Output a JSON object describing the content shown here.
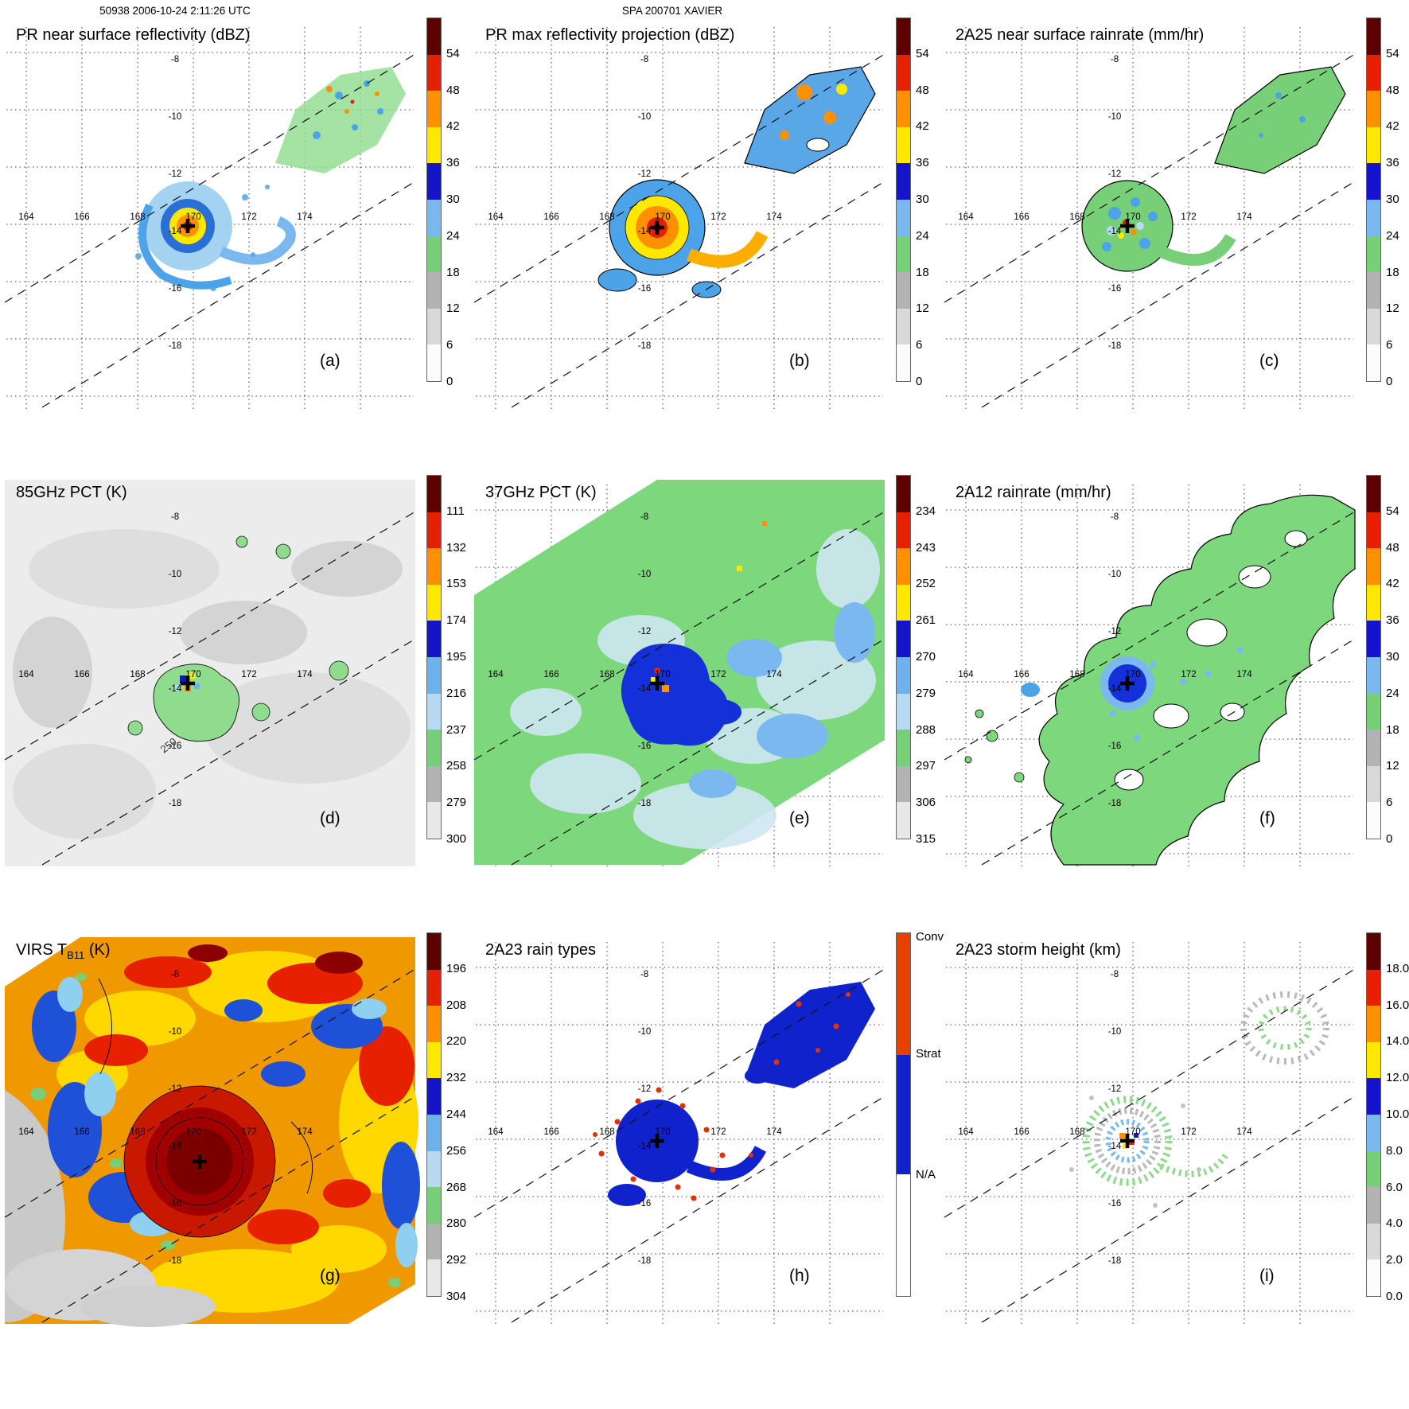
{
  "header": {
    "scan_id_time": "50938 2006-10-24 2:11:26 UTC",
    "storm_name": "SPA 200701 XAVIER"
  },
  "axes": {
    "lon": [
      "164",
      "166",
      "168",
      "170",
      "172",
      "174"
    ],
    "lat": [
      "-8",
      "-10",
      "-12",
      "-14",
      "-16",
      "-18"
    ]
  },
  "palettes": {
    "rain": [
      "#5c0000",
      "#e62000",
      "#ff9000",
      "#ffe800",
      "#1414cc",
      "#7ab8ef",
      "#77d077",
      "#b3b3b3",
      "#d9d9d9",
      "#fbfbfb"
    ],
    "temp": [
      "#5c0000",
      "#e62000",
      "#ff9000",
      "#ffe800",
      "#1414cc",
      "#6db1ed",
      "#b8d9f2",
      "#77d077",
      "#b3b3b3",
      "#e8e8e8"
    ],
    "raintype": [
      "#e84000",
      "#1022cc",
      "#ffffff"
    ]
  },
  "panels": [
    {
      "id": "a",
      "letter": "(a)",
      "title": "PR near surface reflectivity (dBZ)",
      "palette": "rain",
      "ticks": [
        "54",
        "48",
        "42",
        "36",
        "30",
        "24",
        "18",
        "12",
        "6",
        "0"
      ]
    },
    {
      "id": "b",
      "letter": "(b)",
      "title": "PR max reflectivity projection (dBZ)",
      "palette": "rain",
      "ticks": [
        "54",
        "48",
        "42",
        "36",
        "30",
        "24",
        "18",
        "12",
        "6",
        "0"
      ]
    },
    {
      "id": "c",
      "letter": "(c)",
      "title": "2A25 near surface rainrate (mm/hr)",
      "palette": "rain",
      "ticks": [
        "54",
        "48",
        "42",
        "36",
        "30",
        "24",
        "18",
        "12",
        "6",
        "0"
      ]
    },
    {
      "id": "d",
      "letter": "(d)",
      "title": "85GHz PCT (K)",
      "palette": "temp",
      "ticks": [
        "111",
        "132",
        "153",
        "174",
        "195",
        "216",
        "237",
        "258",
        "279",
        "300"
      ],
      "contour_label": "250"
    },
    {
      "id": "e",
      "letter": "(e)",
      "title": "37GHz PCT (K)",
      "palette": "temp",
      "ticks": [
        "234",
        "243",
        "252",
        "261",
        "270",
        "279",
        "288",
        "297",
        "306",
        "315"
      ]
    },
    {
      "id": "f",
      "letter": "(f)",
      "title": "2A12 rainrate (mm/hr)",
      "palette": "rain",
      "ticks": [
        "54",
        "48",
        "42",
        "36",
        "30",
        "24",
        "18",
        "12",
        "6",
        "0"
      ]
    },
    {
      "id": "g",
      "letter": "(g)",
      "title_prefix": "VIRS T",
      "title_sub": "B11",
      "title_suffix": " (K)",
      "palette": "temp",
      "ticks": [
        "196",
        "208",
        "220",
        "232",
        "244",
        "256",
        "268",
        "280",
        "292",
        "304"
      ]
    },
    {
      "id": "h",
      "letter": "(h)",
      "title": "2A23 rain types",
      "palette": "raintype",
      "type_labels": [
        "Conv",
        "Strat",
        "N/A"
      ]
    },
    {
      "id": "i",
      "letter": "(i)",
      "title": "2A23 storm height (km)",
      "palette": "rain",
      "ticks": [
        "18.0",
        "16.0",
        "14.0",
        "12.0",
        "10.0",
        "8.0",
        "6.0",
        "4.0",
        "2.0",
        "0.0"
      ]
    }
  ],
  "chart_data": [
    {
      "type": "heatmap",
      "panel": "a",
      "title": "PR near surface reflectivity (dBZ)",
      "units": "dBZ",
      "colorbar_ticks": [
        54,
        48,
        42,
        36,
        30,
        24,
        18,
        12,
        6,
        0
      ],
      "lon_ticks": [
        164,
        166,
        168,
        170,
        172,
        174
      ],
      "lat_ticks": [
        -8,
        -10,
        -12,
        -14,
        -16,
        -18
      ],
      "storm_center": {
        "lon": 169.6,
        "lat": -14.1
      },
      "features": "Narrow PR swath oriented SW-NE between dashed boundaries; eyewall ring 30-50 dBZ around center with spiral band 20-35 dBZ to the ESE; stratiform area near 173-175E 10-12S mostly 18-30 dBZ"
    },
    {
      "type": "heatmap",
      "panel": "b",
      "title": "PR max reflectivity projection (dBZ)",
      "units": "dBZ",
      "colorbar_ticks": [
        54,
        48,
        42,
        36,
        30,
        24,
        18,
        12,
        6,
        0
      ],
      "storm_center": {
        "lon": 169.6,
        "lat": -14.1
      },
      "features": "Column-maximum reflectivity in same swath; eyewall 36-54 dBZ (yellow-orange-red core), outer bands 24-36 dBZ, black outlines around echo regions"
    },
    {
      "type": "heatmap",
      "panel": "c",
      "title": "2A25 near surface rainrate (mm/hr)",
      "units": "mm/hr",
      "colorbar_ticks": [
        54,
        48,
        42,
        36,
        30,
        24,
        18,
        12,
        6,
        0
      ],
      "storm_center": {
        "lon": 169.6,
        "lat": -14.1
      },
      "features": "Rain mostly 1-12 mm/hr (green) with embedded 18-30 mm/hr (blue) pixels in eyewall and a few >36 mm/hr pixels near center; NE stratiform patch light rain"
    },
    {
      "type": "heatmap",
      "panel": "d",
      "title": "85GHz PCT (K)",
      "units": "K",
      "colorbar_ticks": [
        111,
        132,
        153,
        174,
        195,
        216,
        237,
        258,
        279,
        300
      ],
      "contour_label": 250,
      "storm_center": {
        "lon": 169.6,
        "lat": -14.1
      },
      "features": "Wide TMI swath fills panel; background 270-300 K (light gray); 237-258 K (green) ice-scattering ring around eyewall with 250 K contour; isolated <195 K (blue/yellow) pixels at eyewall"
    },
    {
      "type": "heatmap",
      "panel": "e",
      "title": "37GHz PCT (K)",
      "units": "K",
      "colorbar_ticks": [
        234,
        243,
        252,
        261,
        270,
        279,
        288,
        297,
        306,
        315
      ],
      "storm_center": {
        "lon": 169.6,
        "lat": -14.1
      },
      "features": "Diagonal conical-scan swath; ocean background 288-300 K (green), cloudy regions 270-288 K (pale blue), strong 261-270 K (dark blue) depression at storm core with a few <252 K (yellow/orange) eyewall pixels"
    },
    {
      "type": "heatmap",
      "panel": "f",
      "title": "2A12 rainrate (mm/hr)",
      "units": "mm/hr",
      "colorbar_ticks": [
        54,
        48,
        42,
        36,
        30,
        24,
        18,
        12,
        6,
        0
      ],
      "storm_center": {
        "lon": 169.6,
        "lat": -14.1
      },
      "features": "TMI retrieved rain: broad 1-12 mm/hr (green) shield from about 168E 17S to 175E 9S with rain-free holes outlined in black; 18-30 mm/hr (blue) maximum at storm center"
    },
    {
      "type": "heatmap",
      "panel": "g",
      "title": "VIRS TB11 (K)",
      "units": "K",
      "colorbar_ticks": [
        196,
        208,
        220,
        232,
        244,
        256,
        268,
        280,
        292,
        304
      ],
      "storm_center": {
        "lon": 169.6,
        "lat": -14.1
      },
      "features": "Full IR scene: large cold central dense overcast <208 K (dark red) over the cyclone, widespread 208-232 K anvil (red-orange-yellow), 232-256 K cloud edges (blue/cyan), warm low cloud 268-304 K (gray/white) to the southwest"
    },
    {
      "type": "categorical-map",
      "panel": "h",
      "title": "2A23 rain types",
      "categories": [
        "Conv",
        "Strat",
        "N/A"
      ],
      "storm_center": {
        "lon": 169.6,
        "lat": -14.1
      },
      "features": "PR rain-type classification: predominantly stratiform (blue) in eyewall ring, spiral band and NE region; scattered convective (red) pixels along eyewall and band edges"
    },
    {
      "type": "heatmap",
      "panel": "i",
      "title": "2A23 storm height (km)",
      "units": "km",
      "colorbar_ticks": [
        18.0,
        16.0,
        14.0,
        12.0,
        10.0,
        8.0,
        6.0,
        4.0,
        2.0,
        0.0
      ],
      "storm_center": {
        "lon": 169.6,
        "lat": -14.1
      },
      "features": "Echo-top heights mostly 4-8 km (gray/green speckle) with 8-12 km (blue) ring and isolated 14-18 km (orange/red) tops at the eyewall; sparse speckle in NE stratiform patch"
    }
  ]
}
